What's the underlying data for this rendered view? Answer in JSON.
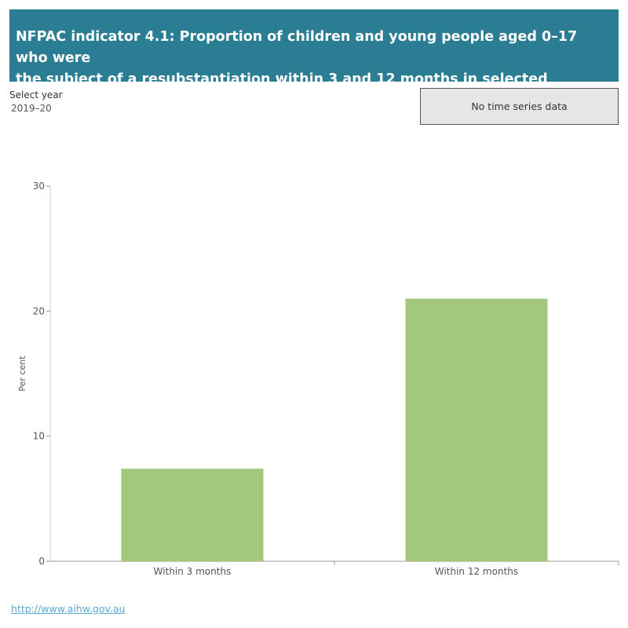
{
  "header": {
    "title_line1": "NFPAC indicator 4.1: Proportion of children and young people aged 0–17 who were",
    "title_line2": "the subject of a resubstantiation within 3 and 12 months in selected financial year"
  },
  "filter": {
    "label": "Select year",
    "value": "2019–20"
  },
  "time_series_button": "No time series data",
  "footer_link": "http://www.aihw.gov.au",
  "colors": {
    "title_bg": "#2a7d93",
    "bar": "#a2c77d"
  },
  "chart_data": {
    "type": "bar",
    "categories": [
      "Within 3 months",
      "Within 12 months"
    ],
    "values": [
      7.4,
      21.0
    ],
    "ylabel": "Per cent",
    "xlabel": "",
    "ylim": [
      0,
      30
    ],
    "yticks": [
      0,
      10,
      20,
      30
    ],
    "yticks_labels": [
      "0",
      "10",
      "20",
      "30"
    ],
    "grid": false
  }
}
